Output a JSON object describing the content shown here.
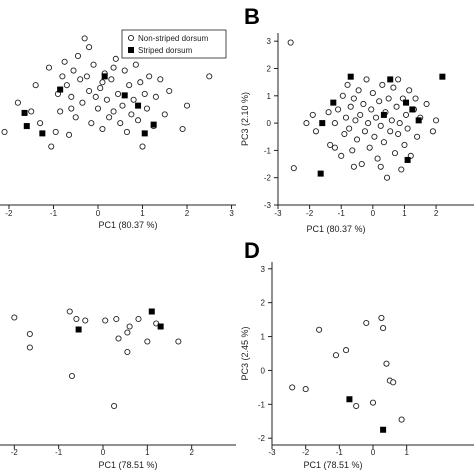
{
  "legend": {
    "open_label": "Non-striped dorsum",
    "filled_label": "Striped dorsum"
  },
  "panel_labels": [
    "B",
    "D"
  ],
  "chart_data": [
    {
      "id": "A",
      "type": "scatter",
      "xlabel": "PC1 (80.37 %)",
      "ylabel": "",
      "xlim": [
        -3.1,
        3.1
      ],
      "ylim": [
        -3.4,
        3.1
      ],
      "xticks": [
        -2,
        -1,
        0,
        1,
        2,
        3
      ],
      "yticks": [],
      "series": [
        {
          "name": "Non-striped dorsum",
          "marker": "open-circle",
          "points": [
            [
              -2.9,
              -0.6
            ],
            [
              -2.7,
              -0.3
            ],
            [
              -2.5,
              0.3
            ],
            [
              -2.1,
              -0.9
            ],
            [
              -1.8,
              0.1
            ],
            [
              -1.5,
              -0.2
            ],
            [
              -1.4,
              0.7
            ],
            [
              -1.3,
              -0.6
            ],
            [
              -1.1,
              1.3
            ],
            [
              -1.05,
              -1.4
            ],
            [
              -0.95,
              -0.9
            ],
            [
              -0.9,
              0.4
            ],
            [
              -0.85,
              -0.2
            ],
            [
              -0.8,
              1.0
            ],
            [
              -0.75,
              1.5
            ],
            [
              -0.7,
              0.7
            ],
            [
              -0.65,
              -1.0
            ],
            [
              -0.6,
              0.3
            ],
            [
              -0.55,
              1.2
            ],
            [
              -0.5,
              -0.4
            ],
            [
              -0.45,
              1.7
            ],
            [
              -0.4,
              0.9
            ],
            [
              -0.35,
              0.1
            ],
            [
              -0.3,
              2.3
            ],
            [
              -0.25,
              1.0
            ],
            [
              -0.2,
              0.5
            ],
            [
              -0.15,
              -0.6
            ],
            [
              -0.1,
              1.4
            ],
            [
              -0.05,
              0.3
            ],
            [
              0.0,
              -0.1
            ],
            [
              0.05,
              0.6
            ],
            [
              0.1,
              -0.8
            ],
            [
              0.15,
              1.1
            ],
            [
              0.2,
              0.2
            ],
            [
              0.25,
              -0.4
            ],
            [
              0.3,
              0.9
            ],
            [
              0.35,
              -0.2
            ],
            [
              0.4,
              1.6
            ],
            [
              0.45,
              0.4
            ],
            [
              0.5,
              -0.6
            ],
            [
              0.55,
              0.0
            ],
            [
              0.6,
              1.2
            ],
            [
              0.65,
              -0.9
            ],
            [
              0.7,
              0.7
            ],
            [
              0.75,
              -0.3
            ],
            [
              0.8,
              0.2
            ],
            [
              0.85,
              1.4
            ],
            [
              0.9,
              -0.5
            ],
            [
              0.95,
              0.8
            ],
            [
              1.0,
              -1.4
            ],
            [
              1.05,
              0.4
            ],
            [
              1.1,
              -0.1
            ],
            [
              1.15,
              1.0
            ],
            [
              1.25,
              -0.7
            ],
            [
              1.3,
              0.3
            ],
            [
              1.4,
              0.9
            ],
            [
              1.5,
              -0.3
            ],
            [
              1.6,
              0.5
            ],
            [
              1.9,
              -0.8
            ],
            [
              2.0,
              0.0
            ],
            [
              2.5,
              1.0
            ],
            [
              -0.2,
              2.0
            ],
            [
              0.1,
              0.8
            ],
            [
              -0.6,
              -0.1
            ],
            [
              0.35,
              1.3
            ]
          ]
        },
        {
          "name": "Striped dorsum",
          "marker": "filled-square",
          "points": [
            [
              -1.65,
              -0.25
            ],
            [
              -1.6,
              -0.7
            ],
            [
              -1.25,
              -0.95
            ],
            [
              -0.85,
              0.55
            ],
            [
              0.15,
              1.0
            ],
            [
              0.6,
              0.35
            ],
            [
              0.9,
              0.0
            ],
            [
              1.05,
              -0.95
            ],
            [
              1.25,
              -0.65
            ]
          ]
        }
      ]
    },
    {
      "id": "B",
      "type": "scatter",
      "xlabel": "PC1 (80.37 %)",
      "ylabel": "PC3 (2.10 %)",
      "xlim": [
        -3,
        3.2
      ],
      "ylim": [
        -3,
        3.3
      ],
      "xticks": [
        -3,
        -2,
        -1,
        0,
        1,
        2
      ],
      "yticks": [
        -3,
        -2,
        -1,
        0,
        1,
        2,
        3
      ],
      "series": [
        {
          "name": "Non-striped dorsum",
          "marker": "open-circle",
          "points": [
            [
              -2.6,
              2.95
            ],
            [
              -2.5,
              -1.65
            ],
            [
              -2.1,
              0.0
            ],
            [
              -1.9,
              0.3
            ],
            [
              -1.8,
              -0.3
            ],
            [
              -1.4,
              0.4
            ],
            [
              -1.35,
              -0.8
            ],
            [
              -1.2,
              0.0
            ],
            [
              -1.1,
              0.5
            ],
            [
              -1.0,
              -1.2
            ],
            [
              -0.95,
              1.0
            ],
            [
              -0.9,
              -0.4
            ],
            [
              -0.85,
              0.2
            ],
            [
              -0.8,
              1.4
            ],
            [
              -0.75,
              -0.2
            ],
            [
              -0.7,
              0.6
            ],
            [
              -0.65,
              -1.0
            ],
            [
              -0.6,
              0.9
            ],
            [
              -0.55,
              0.1
            ],
            [
              -0.5,
              -0.6
            ],
            [
              -0.45,
              1.2
            ],
            [
              -0.4,
              0.3
            ],
            [
              -0.35,
              -1.5
            ],
            [
              -0.3,
              0.7
            ],
            [
              -0.25,
              -0.3
            ],
            [
              -0.2,
              1.6
            ],
            [
              -0.15,
              0.0
            ],
            [
              -0.1,
              -0.9
            ],
            [
              -0.05,
              0.5
            ],
            [
              0.0,
              1.1
            ],
            [
              0.05,
              -0.5
            ],
            [
              0.1,
              0.2
            ],
            [
              0.15,
              -1.3
            ],
            [
              0.2,
              0.8
            ],
            [
              0.25,
              -0.1
            ],
            [
              0.3,
              1.4
            ],
            [
              0.35,
              -0.7
            ],
            [
              0.4,
              0.4
            ],
            [
              0.45,
              -2.0
            ],
            [
              0.5,
              0.9
            ],
            [
              0.55,
              -0.3
            ],
            [
              0.6,
              0.1
            ],
            [
              0.65,
              1.3
            ],
            [
              0.7,
              -1.1
            ],
            [
              0.75,
              0.6
            ],
            [
              0.8,
              -0.4
            ],
            [
              0.85,
              0.0
            ],
            [
              0.9,
              -1.7
            ],
            [
              0.95,
              0.9
            ],
            [
              1.0,
              -0.8
            ],
            [
              1.05,
              0.3
            ],
            [
              1.1,
              -0.2
            ],
            [
              1.15,
              1.2
            ],
            [
              1.2,
              -1.2
            ],
            [
              1.3,
              0.5
            ],
            [
              1.4,
              -0.5
            ],
            [
              1.5,
              0.2
            ],
            [
              1.7,
              0.7
            ],
            [
              1.9,
              -0.3
            ],
            [
              2.0,
              0.1
            ],
            [
              -1.2,
              -0.9
            ],
            [
              0.25,
              -1.6
            ],
            [
              -0.6,
              -1.6
            ],
            [
              0.8,
              1.6
            ],
            [
              1.35,
              0.9
            ]
          ]
        },
        {
          "name": "Striped dorsum",
          "marker": "filled-square",
          "points": [
            [
              -1.65,
              -1.85
            ],
            [
              -1.6,
              0.0
            ],
            [
              -1.25,
              0.75
            ],
            [
              -0.7,
              1.7
            ],
            [
              0.35,
              0.3
            ],
            [
              0.55,
              1.6
            ],
            [
              1.05,
              0.75
            ],
            [
              1.1,
              -1.35
            ],
            [
              1.25,
              0.5
            ],
            [
              1.45,
              0.1
            ],
            [
              2.2,
              1.7
            ]
          ]
        }
      ]
    },
    {
      "id": "C",
      "type": "scatter",
      "xlabel": "PC1 (78.51 %)",
      "ylabel": "",
      "xlim": [
        -3,
        3
      ],
      "ylim": [
        -3,
        3
      ],
      "xticks": [
        -2,
        -1,
        0,
        1,
        2
      ],
      "yticks": [],
      "series": [
        {
          "name": "Non-striped dorsum",
          "marker": "open-circle",
          "points": [
            [
              -2.0,
              1.25
            ],
            [
              -1.65,
              0.7
            ],
            [
              -1.65,
              0.25
            ],
            [
              -0.75,
              1.45
            ],
            [
              -0.6,
              1.2
            ],
            [
              -0.4,
              1.15
            ],
            [
              -0.7,
              -0.7
            ],
            [
              0.05,
              1.15
            ],
            [
              0.3,
              1.2
            ],
            [
              0.35,
              0.55
            ],
            [
              0.55,
              0.1
            ],
            [
              0.55,
              0.75
            ],
            [
              0.6,
              0.95
            ],
            [
              0.8,
              1.2
            ],
            [
              1.0,
              0.45
            ],
            [
              1.2,
              1.05
            ],
            [
              1.7,
              0.45
            ],
            [
              0.25,
              -1.7
            ]
          ]
        },
        {
          "name": "Striped dorsum",
          "marker": "filled-square",
          "points": [
            [
              -0.55,
              0.85
            ],
            [
              1.1,
              1.45
            ],
            [
              1.3,
              0.95
            ]
          ]
        }
      ]
    },
    {
      "id": "D",
      "type": "scatter",
      "xlabel": "PC1 (78.51 %)",
      "ylabel": "PC3 (2.45 %)",
      "xlim": [
        -3,
        3
      ],
      "ylim": [
        -2.2,
        3.2
      ],
      "xticks": [
        -3,
        -2,
        -1,
        0,
        1
      ],
      "yticks": [
        -2,
        -1,
        0,
        1,
        2,
        3
      ],
      "series": [
        {
          "name": "Non-striped dorsum",
          "marker": "open-circle",
          "points": [
            [
              -2.4,
              -0.5
            ],
            [
              -2.0,
              -0.55
            ],
            [
              -1.6,
              1.2
            ],
            [
              -1.1,
              0.45
            ],
            [
              -0.8,
              0.6
            ],
            [
              -0.5,
              -1.05
            ],
            [
              -0.2,
              1.4
            ],
            [
              0.0,
              -0.95
            ],
            [
              0.25,
              1.55
            ],
            [
              0.3,
              1.25
            ],
            [
              0.4,
              0.2
            ],
            [
              0.5,
              -0.3
            ],
            [
              0.6,
              -0.35
            ],
            [
              0.85,
              -1.45
            ]
          ]
        },
        {
          "name": "Striped dorsum",
          "marker": "filled-square",
          "points": [
            [
              -0.7,
              -0.85
            ],
            [
              0.3,
              -1.75
            ]
          ]
        }
      ]
    }
  ]
}
